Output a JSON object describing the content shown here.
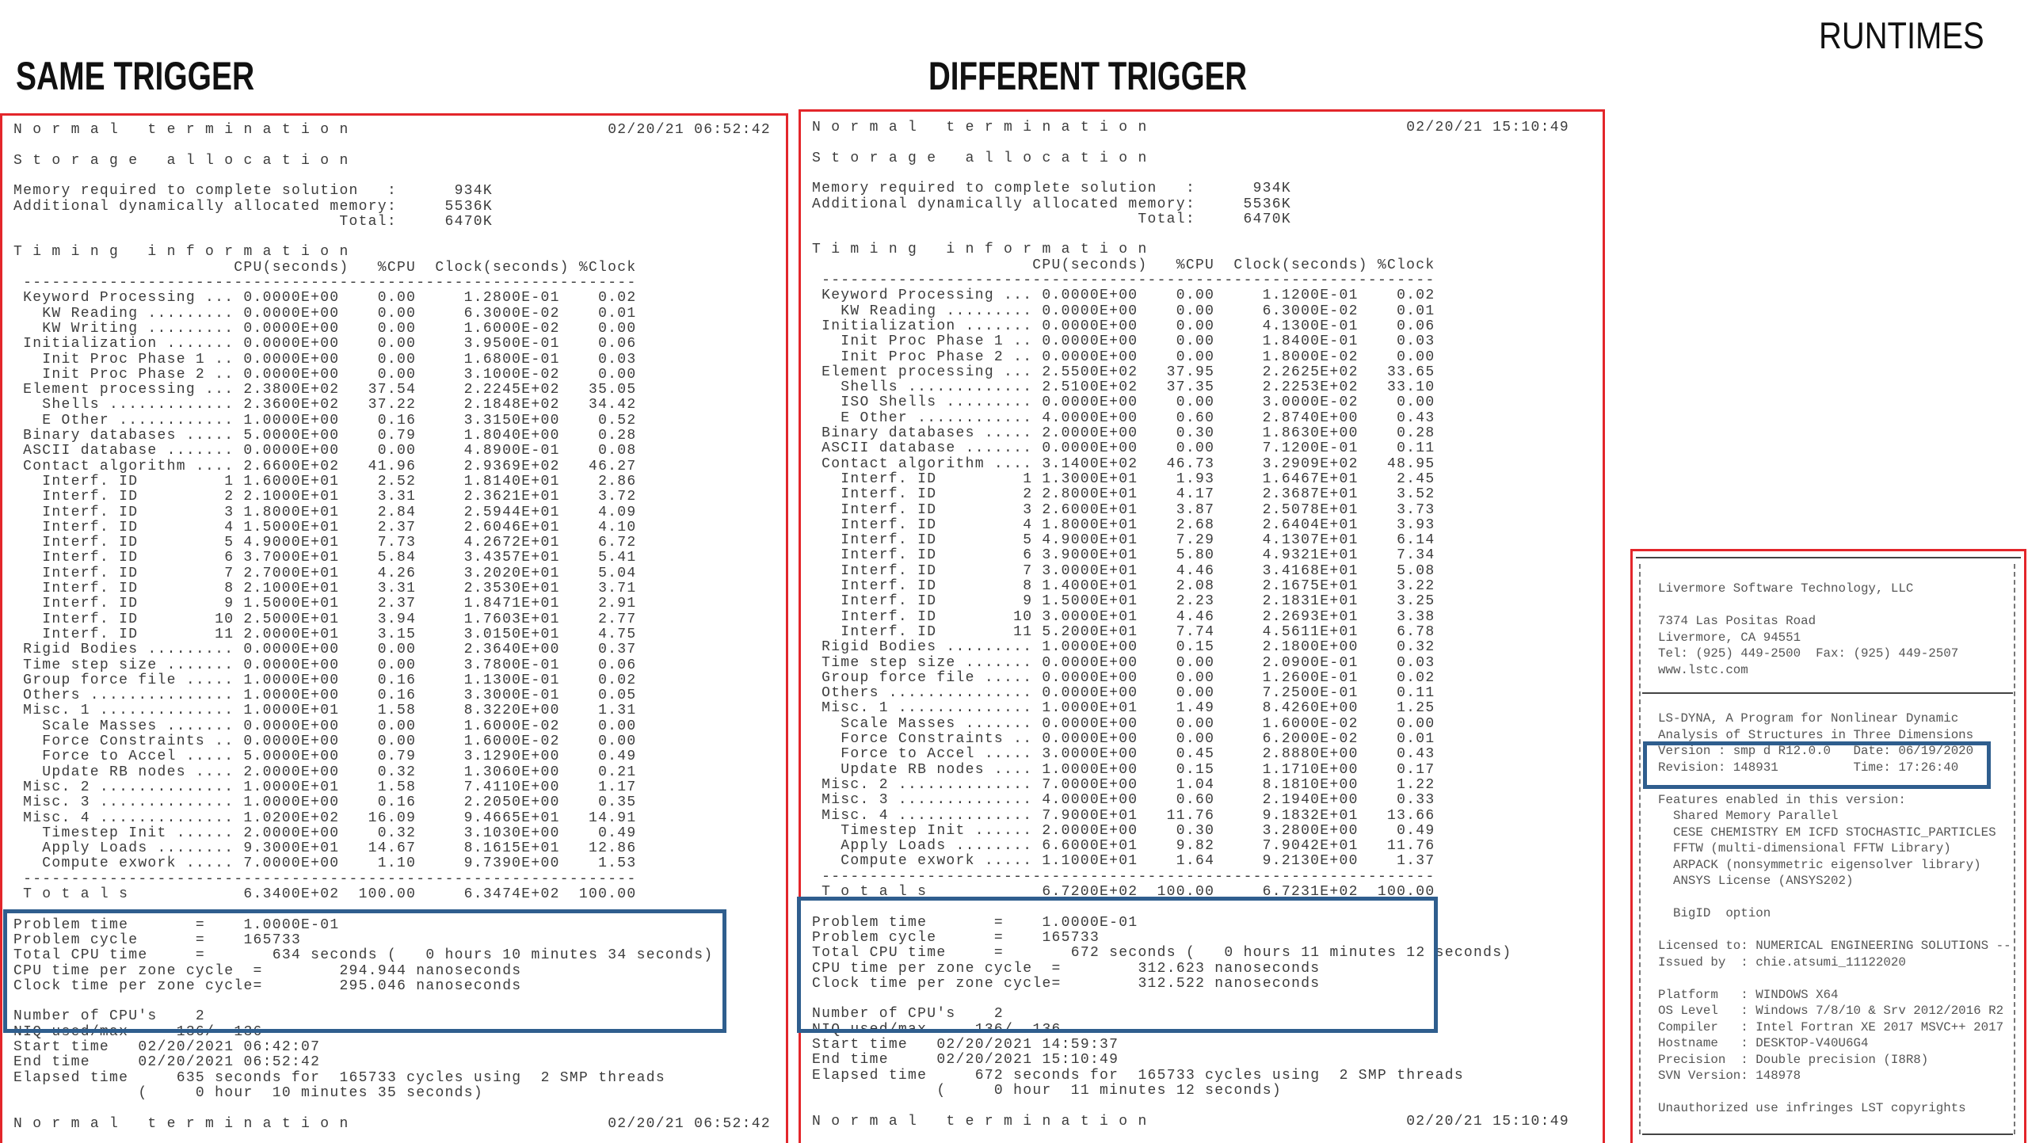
{
  "headings": {
    "same": "SAME TRIGGER",
    "different": "DIFFERENT TRIGGER",
    "runtimes": "RUNTIMES"
  },
  "colors": {
    "highlight_box": "#2f5e8e",
    "panel_border": "#e3262b"
  },
  "left": {
    "normal_termination": "N o r m a l   t e r m i n a t i o n",
    "timestamp": "02/20/21 06:52:42",
    "storage_title": "S t o r a g e   a l l o c a t i o n",
    "memory": [
      [
        "Memory required to complete solution   :",
        "934K"
      ],
      [
        "Additional dynamically allocated memory:",
        "5536K"
      ],
      [
        "Total:",
        "6470K"
      ]
    ],
    "timing_title": "T i m i n g   i n f o r m a t i o n",
    "header": {
      "cpu": "CPU(seconds)",
      "pcpu": "%CPU",
      "clock": "Clock(seconds)",
      "pclock": "%Clock"
    },
    "rows": [
      [
        "Keyword Processing ...",
        "0.0000E+00",
        "0.00",
        "1.2800E-01",
        "0.02"
      ],
      [
        "  KW Reading .........",
        "0.0000E+00",
        "0.00",
        "6.3000E-02",
        "0.01"
      ],
      [
        "  KW Writing .........",
        "0.0000E+00",
        "0.00",
        "1.6000E-02",
        "0.00"
      ],
      [
        "Initialization .......",
        "0.0000E+00",
        "0.00",
        "3.9500E-01",
        "0.06"
      ],
      [
        "  Init Proc Phase 1 ..",
        "0.0000E+00",
        "0.00",
        "1.6800E-01",
        "0.03"
      ],
      [
        "  Init Proc Phase 2 ..",
        "0.0000E+00",
        "0.00",
        "3.1000E-02",
        "0.00"
      ],
      [
        "Element processing ...",
        "2.3800E+02",
        "37.54",
        "2.2245E+02",
        "35.05"
      ],
      [
        "  Shells .............",
        "2.3600E+02",
        "37.22",
        "2.1848E+02",
        "34.42"
      ],
      [
        "  E Other ............",
        "1.0000E+00",
        "0.16",
        "3.3150E+00",
        "0.52"
      ],
      [
        "Binary databases .....",
        "5.0000E+00",
        "0.79",
        "1.8040E+00",
        "0.28"
      ],
      [
        "ASCII database .......",
        "0.0000E+00",
        "0.00",
        "4.8900E-01",
        "0.08"
      ],
      [
        "Contact algorithm ....",
        "2.6600E+02",
        "41.96",
        "2.9369E+02",
        "46.27"
      ],
      [
        "  Interf. ID         1",
        "1.6000E+01",
        "2.52",
        "1.8140E+01",
        "2.86"
      ],
      [
        "  Interf. ID         2",
        "2.1000E+01",
        "3.31",
        "2.3621E+01",
        "3.72"
      ],
      [
        "  Interf. ID         3",
        "1.8000E+01",
        "2.84",
        "2.5944E+01",
        "4.09"
      ],
      [
        "  Interf. ID         4",
        "1.5000E+01",
        "2.37",
        "2.6046E+01",
        "4.10"
      ],
      [
        "  Interf. ID         5",
        "4.9000E+01",
        "7.73",
        "4.2672E+01",
        "6.72"
      ],
      [
        "  Interf. ID         6",
        "3.7000E+01",
        "5.84",
        "3.4357E+01",
        "5.41"
      ],
      [
        "  Interf. ID         7",
        "2.7000E+01",
        "4.26",
        "3.2020E+01",
        "5.04"
      ],
      [
        "  Interf. ID         8",
        "2.1000E+01",
        "3.31",
        "2.3530E+01",
        "3.71"
      ],
      [
        "  Interf. ID         9",
        "1.5000E+01",
        "2.37",
        "1.8471E+01",
        "2.91"
      ],
      [
        "  Interf. ID        10",
        "2.5000E+01",
        "3.94",
        "1.7603E+01",
        "2.77"
      ],
      [
        "  Interf. ID        11",
        "2.0000E+01",
        "3.15",
        "3.0150E+01",
        "4.75"
      ],
      [
        "Rigid Bodies .........",
        "0.0000E+00",
        "0.00",
        "2.3640E+00",
        "0.37"
      ],
      [
        "Time step size .......",
        "0.0000E+00",
        "0.00",
        "3.7800E-01",
        "0.06"
      ],
      [
        "Group force file .....",
        "1.0000E+00",
        "0.16",
        "1.1300E-01",
        "0.02"
      ],
      [
        "Others ...............",
        "1.0000E+00",
        "0.16",
        "3.3000E-01",
        "0.05"
      ],
      [
        "Misc. 1 ..............",
        "1.0000E+01",
        "1.58",
        "8.3220E+00",
        "1.31"
      ],
      [
        "  Scale Masses .......",
        "0.0000E+00",
        "0.00",
        "1.6000E-02",
        "0.00"
      ],
      [
        "  Force Constraints ..",
        "0.0000E+00",
        "0.00",
        "1.6000E-02",
        "0.00"
      ],
      [
        "  Force to Accel .....",
        "5.0000E+00",
        "0.79",
        "3.1290E+00",
        "0.49"
      ],
      [
        "  Update RB nodes ....",
        "2.0000E+00",
        "0.32",
        "1.3060E+00",
        "0.21"
      ],
      [
        "Misc. 2 ..............",
        "1.0000E+01",
        "1.58",
        "7.4110E+00",
        "1.17"
      ],
      [
        "Misc. 3 ..............",
        "1.0000E+00",
        "0.16",
        "2.2050E+00",
        "0.35"
      ],
      [
        "Misc. 4 ..............",
        "1.0200E+02",
        "16.09",
        "9.4665E+01",
        "14.91"
      ],
      [
        "  Timestep Init ......",
        "2.0000E+00",
        "0.32",
        "3.1030E+00",
        "0.49"
      ],
      [
        "  Apply Loads ........",
        "9.3000E+01",
        "14.67",
        "8.1615E+01",
        "12.86"
      ],
      [
        "  Compute exwork .....",
        "7.0000E+00",
        "1.10",
        "9.7390E+00",
        "1.53"
      ]
    ],
    "totals": [
      "T o t a l s",
      "6.3400E+02",
      "100.00",
      "6.3474E+02",
      "100.00"
    ],
    "summary": [
      "Problem time       =    1.0000E-01",
      "Problem cycle      =    165733",
      "Total CPU time     =       634 seconds (   0 hours 10 minutes 34 seconds)",
      "CPU time per zone cycle  =        294.944 nanoseconds",
      "Clock time per zone cycle=        295.046 nanoseconds"
    ],
    "footer": [
      "Number of CPU's    2",
      "NIQ used/max     136/  136",
      "Start time   02/20/2021 06:42:07",
      "End time     02/20/2021 06:52:42",
      "Elapsed time     635 seconds for  165733 cycles using  2 SMP threads",
      "             (     0 hour  10 minutes 35 seconds)"
    ]
  },
  "middle": {
    "normal_termination": "N o r m a l   t e r m i n a t i o n",
    "timestamp": "02/20/21 15:10:49",
    "storage_title": "S t o r a g e   a l l o c a t i o n",
    "memory": [
      [
        "Memory required to complete solution   :",
        "934K"
      ],
      [
        "Additional dynamically allocated memory:",
        "5536K"
      ],
      [
        "Total:",
        "6470K"
      ]
    ],
    "timing_title": "T i m i n g   i n f o r m a t i o n",
    "header": {
      "cpu": "CPU(seconds)",
      "pcpu": "%CPU",
      "clock": "Clock(seconds)",
      "pclock": "%Clock"
    },
    "rows": [
      [
        "Keyword Processing ...",
        "0.0000E+00",
        "0.00",
        "1.1200E-01",
        "0.02"
      ],
      [
        "  KW Reading .........",
        "0.0000E+00",
        "0.00",
        "6.3000E-02",
        "0.01"
      ],
      [
        "Initialization .......",
        "0.0000E+00",
        "0.00",
        "4.1300E-01",
        "0.06"
      ],
      [
        "  Init Proc Phase 1 ..",
        "0.0000E+00",
        "0.00",
        "1.8400E-01",
        "0.03"
      ],
      [
        "  Init Proc Phase 2 ..",
        "0.0000E+00",
        "0.00",
        "1.8000E-02",
        "0.00"
      ],
      [
        "Element processing ...",
        "2.5500E+02",
        "37.95",
        "2.2625E+02",
        "33.65"
      ],
      [
        "  Shells .............",
        "2.5100E+02",
        "37.35",
        "2.2253E+02",
        "33.10"
      ],
      [
        "  ISO Shells .........",
        "0.0000E+00",
        "0.00",
        "3.0000E-02",
        "0.00"
      ],
      [
        "  E Other ............",
        "4.0000E+00",
        "0.60",
        "2.8740E+00",
        "0.43"
      ],
      [
        "Binary databases .....",
        "2.0000E+00",
        "0.30",
        "1.8630E+00",
        "0.28"
      ],
      [
        "ASCII database .......",
        "0.0000E+00",
        "0.00",
        "7.1200E-01",
        "0.11"
      ],
      [
        "Contact algorithm ....",
        "3.1400E+02",
        "46.73",
        "3.2909E+02",
        "48.95"
      ],
      [
        "  Interf. ID         1",
        "1.3000E+01",
        "1.93",
        "1.6467E+01",
        "2.45"
      ],
      [
        "  Interf. ID         2",
        "2.8000E+01",
        "4.17",
        "2.3687E+01",
        "3.52"
      ],
      [
        "  Interf. ID         3",
        "2.6000E+01",
        "3.87",
        "2.5078E+01",
        "3.73"
      ],
      [
        "  Interf. ID         4",
        "1.8000E+01",
        "2.68",
        "2.6404E+01",
        "3.93"
      ],
      [
        "  Interf. ID         5",
        "4.9000E+01",
        "7.29",
        "4.1307E+01",
        "6.14"
      ],
      [
        "  Interf. ID         6",
        "3.9000E+01",
        "5.80",
        "4.9321E+01",
        "7.34"
      ],
      [
        "  Interf. ID         7",
        "3.0000E+01",
        "4.46",
        "3.4168E+01",
        "5.08"
      ],
      [
        "  Interf. ID         8",
        "1.4000E+01",
        "2.08",
        "2.1675E+01",
        "3.22"
      ],
      [
        "  Interf. ID         9",
        "1.5000E+01",
        "2.23",
        "2.1831E+01",
        "3.25"
      ],
      [
        "  Interf. ID        10",
        "3.0000E+01",
        "4.46",
        "2.2693E+01",
        "3.38"
      ],
      [
        "  Interf. ID        11",
        "5.2000E+01",
        "7.74",
        "4.5611E+01",
        "6.78"
      ],
      [
        "Rigid Bodies .........",
        "1.0000E+00",
        "0.15",
        "2.1800E+00",
        "0.32"
      ],
      [
        "Time step size .......",
        "0.0000E+00",
        "0.00",
        "2.0900E-01",
        "0.03"
      ],
      [
        "Group force file .....",
        "0.0000E+00",
        "0.00",
        "1.2600E-01",
        "0.02"
      ],
      [
        "Others ...............",
        "0.0000E+00",
        "0.00",
        "7.2500E-01",
        "0.11"
      ],
      [
        "Misc. 1 ..............",
        "1.0000E+01",
        "1.49",
        "8.4260E+00",
        "1.25"
      ],
      [
        "  Scale Masses .......",
        "0.0000E+00",
        "0.00",
        "1.6000E-02",
        "0.00"
      ],
      [
        "  Force Constraints ..",
        "0.0000E+00",
        "0.00",
        "6.2000E-02",
        "0.01"
      ],
      [
        "  Force to Accel .....",
        "3.0000E+00",
        "0.45",
        "2.8880E+00",
        "0.43"
      ],
      [
        "  Update RB nodes ....",
        "1.0000E+00",
        "0.15",
        "1.1710E+00",
        "0.17"
      ],
      [
        "Misc. 2 ..............",
        "7.0000E+00",
        "1.04",
        "8.1810E+00",
        "1.22"
      ],
      [
        "Misc. 3 ..............",
        "4.0000E+00",
        "0.60",
        "2.1940E+00",
        "0.33"
      ],
      [
        "Misc. 4 ..............",
        "7.9000E+01",
        "11.76",
        "9.1832E+01",
        "13.66"
      ],
      [
        "  Timestep Init ......",
        "2.0000E+00",
        "0.30",
        "3.2800E+00",
        "0.49"
      ],
      [
        "  Apply Loads ........",
        "6.6000E+01",
        "9.82",
        "7.9042E+01",
        "11.76"
      ],
      [
        "  Compute exwork .....",
        "1.1000E+01",
        "1.64",
        "9.2130E+00",
        "1.37"
      ]
    ],
    "totals": [
      "T o t a l s",
      "6.7200E+02",
      "100.00",
      "6.7231E+02",
      "100.00"
    ],
    "summary": [
      "Problem time       =    1.0000E-01",
      "Problem cycle      =    165733",
      "Total CPU time     =       672 seconds (   0 hours 11 minutes 12 seconds)",
      "CPU time per zone cycle  =        312.623 nanoseconds",
      "Clock time per zone cycle=        312.522 nanoseconds"
    ],
    "footer": [
      "Number of CPU's    2",
      "NIQ used/max     136/  136",
      "Start time   02/20/2021 14:59:37",
      "End time     02/20/2021 15:10:49",
      "Elapsed time     672 seconds for  165733 cycles using  2 SMP threads",
      "             (     0 hour  11 minutes 12 seconds)"
    ]
  },
  "version_banner": {
    "lines": [
      "Livermore Software Technology, LLC",
      "",
      "7374 Las Positas Road",
      "Livermore, CA 94551",
      "Tel: (925) 449-2500  Fax: (925) 449-2507",
      "www.lstc.com",
      "",
      "",
      "LS-DYNA, A Program for Nonlinear Dynamic",
      "Analysis of Structures in Three Dimensions",
      "Version : smp d R12.0.0   Date: 06/19/2020",
      "Revision: 148931          Time: 17:26:40",
      "",
      "Features enabled in this version:",
      "  Shared Memory Parallel",
      "  CESE CHEMISTRY EM ICFD STOCHASTIC_PARTICLES",
      "  FFTW (multi-dimensional FFTW Library)",
      "  ARPACK (nonsymmetric eigensolver library)",
      "  ANSYS License (ANSYS202)",
      "",
      "  BigID  option",
      "",
      "Licensed to: NUMERICAL ENGINEERING SOLUTIONS --",
      "Issued by  : chie.atsumi_11122020",
      "",
      "Platform   : WINDOWS X64",
      "OS Level   : Windows 7/8/10 & Srv 2012/2016 R2",
      "Compiler   : Intel Fortran XE 2017 MSVC++ 2017",
      "Hostname   : DESKTOP-V40U6G4",
      "Precision  : Double precision (I8R8)",
      "SVN Version: 148978",
      "",
      "Unauthorized use infringes LST copyrights"
    ]
  }
}
